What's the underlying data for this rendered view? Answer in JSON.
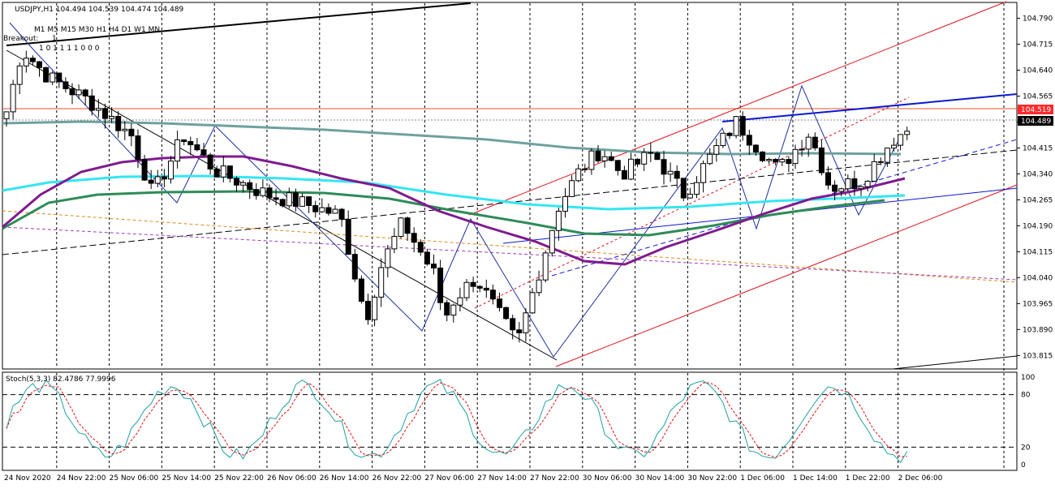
{
  "header": {
    "symbol_line": "USDJPY,H1  104.494 104.539 104.474 104.489",
    "timeframes": "M1 M5 M15 M30 H1 H4 D1 W1 MN",
    "breakout_label": "Breakout:",
    "breakout_value": "1",
    "tf_flags": "1  0  1  1  1  1  0  0  0"
  },
  "stoch_label": "Stoch(5,3,3) 82.4786 77.9996",
  "colors": {
    "bull": "#ffffff",
    "bear": "#000000",
    "ma_purple": "#7f1b8f",
    "ma_cyan": "#33e6f2",
    "ma_green": "#2e8b57",
    "ma_teal": "#6fa0a0",
    "channel": "#e0101a",
    "trend_blue": "#0b18d0",
    "zigzag": "#1f2f9f",
    "stoch_main": "#20a0a0",
    "stoch_signal": "#e01010",
    "price_bg_red": "#ff2a2a",
    "price_bg_black": "#000000"
  },
  "price_tags": {
    "ask": "104.519",
    "bid": "104.489"
  },
  "chart_data": {
    "type": "candlestick",
    "symbol": "USDJPY",
    "timeframe": "H1",
    "ylim": [
      103.79,
      104.81
    ],
    "y_ticks": [
      "104.790",
      "104.715",
      "104.640",
      "104.565",
      "104.490",
      "104.415",
      "104.340",
      "104.265",
      "104.190",
      "104.115",
      "104.040",
      "103.965",
      "103.890",
      "103.815"
    ],
    "x_ticks": [
      "24 Nov 2020",
      "24 Nov 22:00",
      "25 Nov 06:00",
      "25 Nov 14:00",
      "25 Nov 22:00",
      "26 Nov 06:00",
      "26 Nov 14:00",
      "26 Nov 22:00",
      "27 Nov 06:00",
      "27 Nov 14:00",
      "27 Nov 22:00",
      "30 Nov 06:00",
      "30 Nov 14:00",
      "30 Nov 22:00",
      "1 Dec 06:00",
      "1 Dec 14:00",
      "1 Dec 22:00",
      "2 Dec 06:00"
    ],
    "stoch_ylim": [
      0,
      100
    ],
    "stoch_levels": [
      "100",
      "80",
      "20",
      "0"
    ]
  }
}
